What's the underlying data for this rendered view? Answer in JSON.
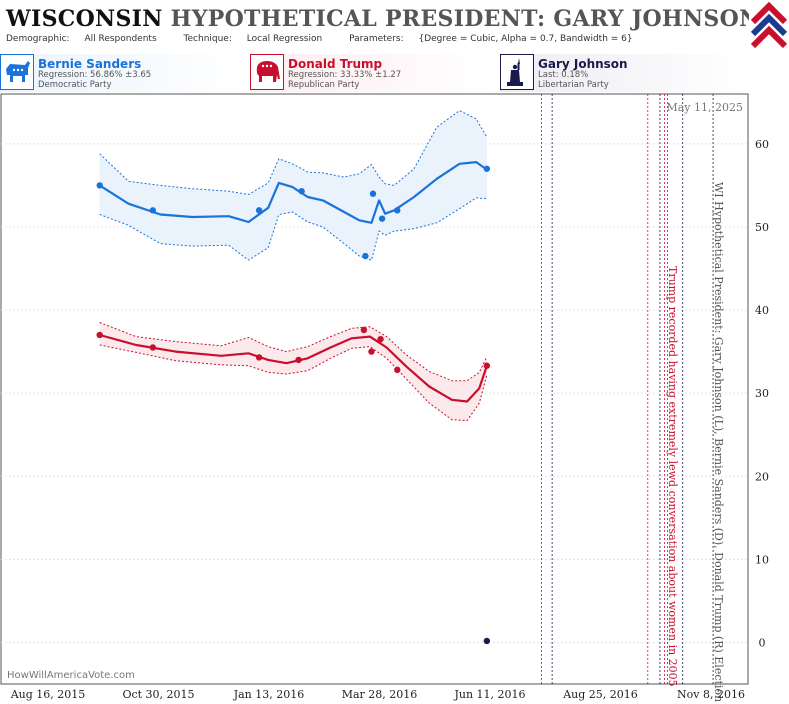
{
  "header": {
    "state": "WISCONSIN",
    "title_rest": "HYPOTHETICAL PRESIDENT: GARY JOHNSON (L) II",
    "demographic_label": "Demographic:",
    "demographic": "All Respondents",
    "technique_label": "Technique:",
    "technique": "Local Regression",
    "parameters_label": "Parameters:",
    "parameters": "{Degree = Cubic, Alpha = 0.7, Bandwidth = 6}"
  },
  "candidates": [
    {
      "name": "Bernie Sanders",
      "stat": "Regression: 56.86% ±3.65",
      "party": "Democratic Party",
      "color": "#1a73d9",
      "bg": "#eaf3fd",
      "icon": "donkey-icon"
    },
    {
      "name": "Donald Trump",
      "stat": "Regression: 33.33% ±1.27",
      "party": "Republican Party",
      "color": "#c8102e",
      "bg": "#fdecef",
      "icon": "elephant-icon"
    },
    {
      "name": "Gary Johnson",
      "stat": "Last: 0.18%",
      "party": "Libertarian Party",
      "color": "#1a1a4e",
      "bg": "#ececf3",
      "icon": "statue-of-liberty-icon"
    }
  ],
  "chart_data": {
    "type": "line",
    "title": "WISCONSIN HYPOTHETICAL PRESIDENT: GARY JOHNSON (L) II",
    "x_tick_labels": [
      "Aug 16, 2015",
      "Oct 30, 2015",
      "Jan 13, 2016",
      "Mar 28, 2016",
      "Jun 11, 2016",
      "Aug 25, 2016",
      "Nov 8, 2016"
    ],
    "x_range": [
      "2015-07-28",
      "2016-12-01"
    ],
    "ylim": [
      -5,
      66
    ],
    "y_ticks": [
      0,
      10,
      20,
      30,
      40,
      50,
      60
    ],
    "date_label": "May 11, 2025",
    "vertical_title": "WI Hypothetical President: Gary Johnson (L), Bernie Sanders (D), Donald Trump (R) Election",
    "event_annotation": "Trump recorded having extremely lewd conversation about women in 2005",
    "watermark": "HowWillAmericaVote.com",
    "event_lines": [
      {
        "date": "2016-07-18",
        "color": "#c8102e"
      },
      {
        "date": "2016-07-25",
        "color": "#1a1a4e"
      },
      {
        "date": "2016-09-26",
        "color": "#c8102e"
      },
      {
        "date": "2016-10-04",
        "color": "#1a1a4e"
      },
      {
        "date": "2016-10-07",
        "color": "#c8102e"
      },
      {
        "date": "2016-10-09",
        "color": "#c8102e"
      },
      {
        "date": "2016-10-19",
        "color": "#1a1a4e"
      },
      {
        "date": "2016-11-08",
        "color": "#1a1a4e"
      }
    ],
    "series": [
      {
        "name": "Bernie Sanders",
        "color": "#1a73d9",
        "band": "#eaf2fc",
        "points": [
          {
            "x": "2015-10-01",
            "y": 55
          },
          {
            "x": "2015-11-05",
            "y": 52
          },
          {
            "x": "2016-01-14",
            "y": 52
          },
          {
            "x": "2016-02-11",
            "y": 54.3
          },
          {
            "x": "2016-03-24",
            "y": 46.5
          },
          {
            "x": "2016-03-29",
            "y": 54
          },
          {
            "x": "2016-04-04",
            "y": 51
          },
          {
            "x": "2016-04-14",
            "y": 52
          },
          {
            "x": "2016-06-12",
            "y": 57
          }
        ],
        "fit": [
          {
            "x": "2015-10-01",
            "y": 55
          },
          {
            "x": "2015-10-20",
            "y": 52.8
          },
          {
            "x": "2015-11-10",
            "y": 51.5
          },
          {
            "x": "2015-12-01",
            "y": 51.2
          },
          {
            "x": "2015-12-25",
            "y": 51.3
          },
          {
            "x": "2016-01-07",
            "y": 50.6
          },
          {
            "x": "2016-01-20",
            "y": 52.3
          },
          {
            "x": "2016-01-27",
            "y": 55.3
          },
          {
            "x": "2016-02-05",
            "y": 54.8
          },
          {
            "x": "2016-02-15",
            "y": 53.6
          },
          {
            "x": "2016-02-25",
            "y": 53.2
          },
          {
            "x": "2016-03-10",
            "y": 51.8
          },
          {
            "x": "2016-03-20",
            "y": 50.8
          },
          {
            "x": "2016-03-28",
            "y": 50.5
          },
          {
            "x": "2016-04-02",
            "y": 53.2
          },
          {
            "x": "2016-04-06",
            "y": 51.6
          },
          {
            "x": "2016-04-12",
            "y": 52.0
          },
          {
            "x": "2016-04-25",
            "y": 53.6
          },
          {
            "x": "2016-05-10",
            "y": 55.8
          },
          {
            "x": "2016-05-25",
            "y": 57.6
          },
          {
            "x": "2016-06-05",
            "y": 57.8
          },
          {
            "x": "2016-06-12",
            "y": 56.9
          }
        ],
        "upper": [
          {
            "x": "2015-10-01",
            "y": 58.8
          },
          {
            "x": "2015-10-20",
            "y": 55.5
          },
          {
            "x": "2015-11-10",
            "y": 55.0
          },
          {
            "x": "2015-12-01",
            "y": 54.6
          },
          {
            "x": "2015-12-25",
            "y": 54.3
          },
          {
            "x": "2016-01-07",
            "y": 53.9
          },
          {
            "x": "2016-01-20",
            "y": 55.3
          },
          {
            "x": "2016-01-27",
            "y": 58.2
          },
          {
            "x": "2016-02-05",
            "y": 57.6
          },
          {
            "x": "2016-02-15",
            "y": 56.6
          },
          {
            "x": "2016-02-25",
            "y": 56.5
          },
          {
            "x": "2016-03-10",
            "y": 56.0
          },
          {
            "x": "2016-03-20",
            "y": 56.4
          },
          {
            "x": "2016-03-28",
            "y": 57.5
          },
          {
            "x": "2016-04-02",
            "y": 56.0
          },
          {
            "x": "2016-04-06",
            "y": 55.2
          },
          {
            "x": "2016-04-12",
            "y": 55.0
          },
          {
            "x": "2016-04-25",
            "y": 57.0
          },
          {
            "x": "2016-05-10",
            "y": 62.0
          },
          {
            "x": "2016-05-25",
            "y": 64.0
          },
          {
            "x": "2016-06-05",
            "y": 63.0
          },
          {
            "x": "2016-06-12",
            "y": 60.8
          }
        ],
        "lower": [
          {
            "x": "2015-10-01",
            "y": 51.5
          },
          {
            "x": "2015-10-20",
            "y": 50.2
          },
          {
            "x": "2015-11-10",
            "y": 48.0
          },
          {
            "x": "2015-12-01",
            "y": 47.7
          },
          {
            "x": "2015-12-25",
            "y": 47.8
          },
          {
            "x": "2016-01-07",
            "y": 46.0
          },
          {
            "x": "2016-01-20",
            "y": 47.5
          },
          {
            "x": "2016-01-27",
            "y": 51.5
          },
          {
            "x": "2016-02-05",
            "y": 51.8
          },
          {
            "x": "2016-02-15",
            "y": 50.6
          },
          {
            "x": "2016-02-25",
            "y": 50.0
          },
          {
            "x": "2016-03-10",
            "y": 48.0
          },
          {
            "x": "2016-03-20",
            "y": 46.5
          },
          {
            "x": "2016-03-28",
            "y": 46.0
          },
          {
            "x": "2016-04-02",
            "y": 49.5
          },
          {
            "x": "2016-04-06",
            "y": 49.0
          },
          {
            "x": "2016-04-12",
            "y": 49.5
          },
          {
            "x": "2016-04-25",
            "y": 49.8
          },
          {
            "x": "2016-05-10",
            "y": 50.5
          },
          {
            "x": "2016-05-25",
            "y": 52.2
          },
          {
            "x": "2016-06-05",
            "y": 53.5
          },
          {
            "x": "2016-06-12",
            "y": 53.4
          }
        ]
      },
      {
        "name": "Donald Trump",
        "color": "#c8102e",
        "band": "#fbe9ec",
        "points": [
          {
            "x": "2015-10-01",
            "y": 37
          },
          {
            "x": "2015-11-05",
            "y": 35.5
          },
          {
            "x": "2016-01-14",
            "y": 34.3
          },
          {
            "x": "2016-02-09",
            "y": 34
          },
          {
            "x": "2016-03-23",
            "y": 37.6
          },
          {
            "x": "2016-03-28",
            "y": 35
          },
          {
            "x": "2016-04-03",
            "y": 36.5
          },
          {
            "x": "2016-04-14",
            "y": 32.8
          },
          {
            "x": "2016-06-12",
            "y": 33.3
          }
        ],
        "fit": [
          {
            "x": "2015-10-01",
            "y": 37
          },
          {
            "x": "2015-10-25",
            "y": 35.8
          },
          {
            "x": "2015-11-20",
            "y": 35.0
          },
          {
            "x": "2015-12-20",
            "y": 34.5
          },
          {
            "x": "2016-01-07",
            "y": 34.8
          },
          {
            "x": "2016-01-20",
            "y": 34.0
          },
          {
            "x": "2016-02-01",
            "y": 33.6
          },
          {
            "x": "2016-02-15",
            "y": 34.2
          },
          {
            "x": "2016-03-01",
            "y": 35.5
          },
          {
            "x": "2016-03-15",
            "y": 36.6
          },
          {
            "x": "2016-03-27",
            "y": 36.8
          },
          {
            "x": "2016-04-07",
            "y": 35.5
          },
          {
            "x": "2016-04-20",
            "y": 33.2
          },
          {
            "x": "2016-05-05",
            "y": 30.8
          },
          {
            "x": "2016-05-20",
            "y": 29.2
          },
          {
            "x": "2016-05-30",
            "y": 29.0
          },
          {
            "x": "2016-06-07",
            "y": 30.6
          },
          {
            "x": "2016-06-12",
            "y": 33.3
          }
        ],
        "upper": [
          {
            "x": "2015-10-01",
            "y": 38.5
          },
          {
            "x": "2015-10-25",
            "y": 36.8
          },
          {
            "x": "2015-11-20",
            "y": 36.2
          },
          {
            "x": "2015-12-20",
            "y": 35.7
          },
          {
            "x": "2016-01-07",
            "y": 36.7
          },
          {
            "x": "2016-01-20",
            "y": 35.6
          },
          {
            "x": "2016-02-01",
            "y": 35.0
          },
          {
            "x": "2016-02-15",
            "y": 35.6
          },
          {
            "x": "2016-03-01",
            "y": 36.8
          },
          {
            "x": "2016-03-15",
            "y": 37.8
          },
          {
            "x": "2016-03-27",
            "y": 38.0
          },
          {
            "x": "2016-04-07",
            "y": 36.8
          },
          {
            "x": "2016-04-20",
            "y": 34.6
          },
          {
            "x": "2016-05-05",
            "y": 32.6
          },
          {
            "x": "2016-05-20",
            "y": 31.5
          },
          {
            "x": "2016-05-30",
            "y": 31.5
          },
          {
            "x": "2016-06-07",
            "y": 32.5
          },
          {
            "x": "2016-06-12",
            "y": 34.4
          }
        ],
        "lower": [
          {
            "x": "2015-10-01",
            "y": 35.8
          },
          {
            "x": "2015-10-25",
            "y": 34.9
          },
          {
            "x": "2015-11-20",
            "y": 33.9
          },
          {
            "x": "2015-12-20",
            "y": 33.4
          },
          {
            "x": "2016-01-07",
            "y": 33.3
          },
          {
            "x": "2016-01-20",
            "y": 32.5
          },
          {
            "x": "2016-02-01",
            "y": 32.3
          },
          {
            "x": "2016-02-15",
            "y": 32.7
          },
          {
            "x": "2016-03-01",
            "y": 34.2
          },
          {
            "x": "2016-03-15",
            "y": 35.4
          },
          {
            "x": "2016-03-27",
            "y": 35.6
          },
          {
            "x": "2016-04-07",
            "y": 34.2
          },
          {
            "x": "2016-04-20",
            "y": 31.7
          },
          {
            "x": "2016-05-05",
            "y": 28.8
          },
          {
            "x": "2016-05-20",
            "y": 26.8
          },
          {
            "x": "2016-05-30",
            "y": 26.7
          },
          {
            "x": "2016-06-07",
            "y": 28.8
          },
          {
            "x": "2016-06-12",
            "y": 32.2
          }
        ]
      },
      {
        "name": "Gary Johnson",
        "color": "#1a1a4e",
        "points": [
          {
            "x": "2016-06-12",
            "y": 0.18
          }
        ]
      }
    ]
  }
}
